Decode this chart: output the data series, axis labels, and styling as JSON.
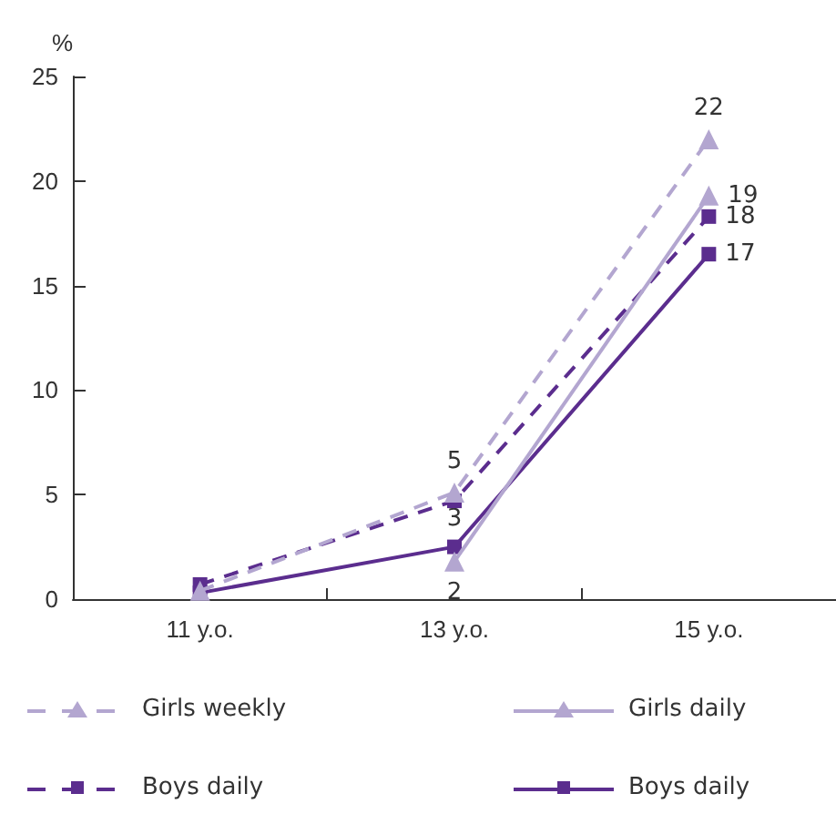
{
  "chart_data": {
    "type": "line",
    "ylabel": "%",
    "categories": [
      "11 y.o.",
      "13 y.o.",
      "15 y.o."
    ],
    "ylim": [
      0,
      25
    ],
    "yticks": [
      0,
      5,
      10,
      15,
      20,
      25
    ],
    "grid": false,
    "legend": "bottom",
    "series": [
      {
        "name": "Girls weekly",
        "color": "#b3a6d0",
        "marker": "triangle",
        "line_style": "dashed",
        "values": [
          0.4,
          5.1,
          22
        ],
        "value_labels": [
          null,
          "5",
          "22"
        ]
      },
      {
        "name": "Girls daily",
        "color": "#b3a6d0",
        "marker": "triangle",
        "line_style": "solid",
        "values": [
          null,
          1.8,
          19.3
        ],
        "value_labels": [
          null,
          "2",
          "19"
        ]
      },
      {
        "name": "Boys daily",
        "color": "#5b2d8e",
        "marker": "square",
        "line_style": "dashed",
        "values": [
          0.7,
          4.7,
          18.3
        ],
        "value_labels": [
          null,
          null,
          "18"
        ]
      },
      {
        "name": "Boys daily",
        "color": "#5b2d8e",
        "marker": "square",
        "line_style": "solid",
        "values": [
          0.3,
          2.5,
          16.5
        ],
        "value_labels": [
          null,
          "3",
          "17"
        ]
      }
    ]
  }
}
